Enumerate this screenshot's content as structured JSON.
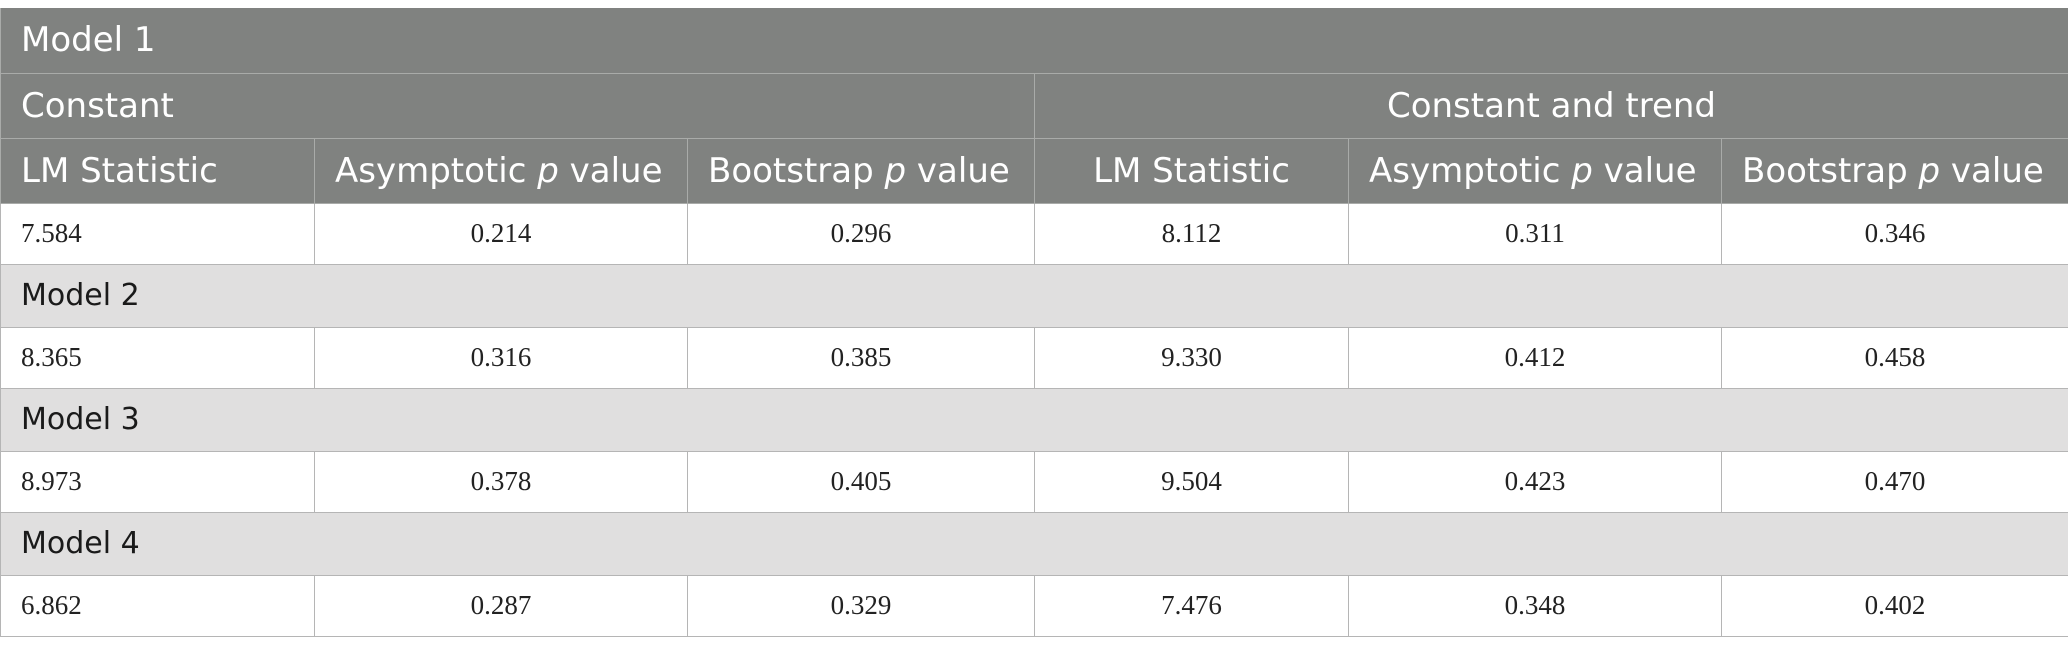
{
  "header": {
    "model1_label": "Model 1",
    "group_constant": "Constant",
    "group_constant_trend": "Constant and trend",
    "columns": [
      {
        "pre": "LM Statistic",
        "ital": "",
        "post": ""
      },
      {
        "pre": "Asymptotic ",
        "ital": "p",
        "post": " value"
      },
      {
        "pre": "Bootstrap ",
        "ital": "p",
        "post": " value"
      },
      {
        "pre": "LM Statistic",
        "ital": "",
        "post": ""
      },
      {
        "pre": "Asymptotic ",
        "ital": "p",
        "post": " value"
      },
      {
        "pre": "Bootstrap ",
        "ital": "p",
        "post": " value"
      }
    ]
  },
  "models": [
    {
      "label": "Model 1",
      "values": [
        "7.584",
        "0.214",
        "0.296",
        "8.112",
        "0.311",
        "0.346"
      ]
    },
    {
      "label": "Model 2",
      "values": [
        "8.365",
        "0.316",
        "0.385",
        "9.330",
        "0.412",
        "0.458"
      ]
    },
    {
      "label": "Model 3",
      "values": [
        "8.973",
        "0.378",
        "0.405",
        "9.504",
        "0.423",
        "0.470"
      ]
    },
    {
      "label": "Model 4",
      "values": [
        "6.862",
        "0.287",
        "0.329",
        "7.476",
        "0.348",
        "0.402"
      ]
    }
  ]
}
